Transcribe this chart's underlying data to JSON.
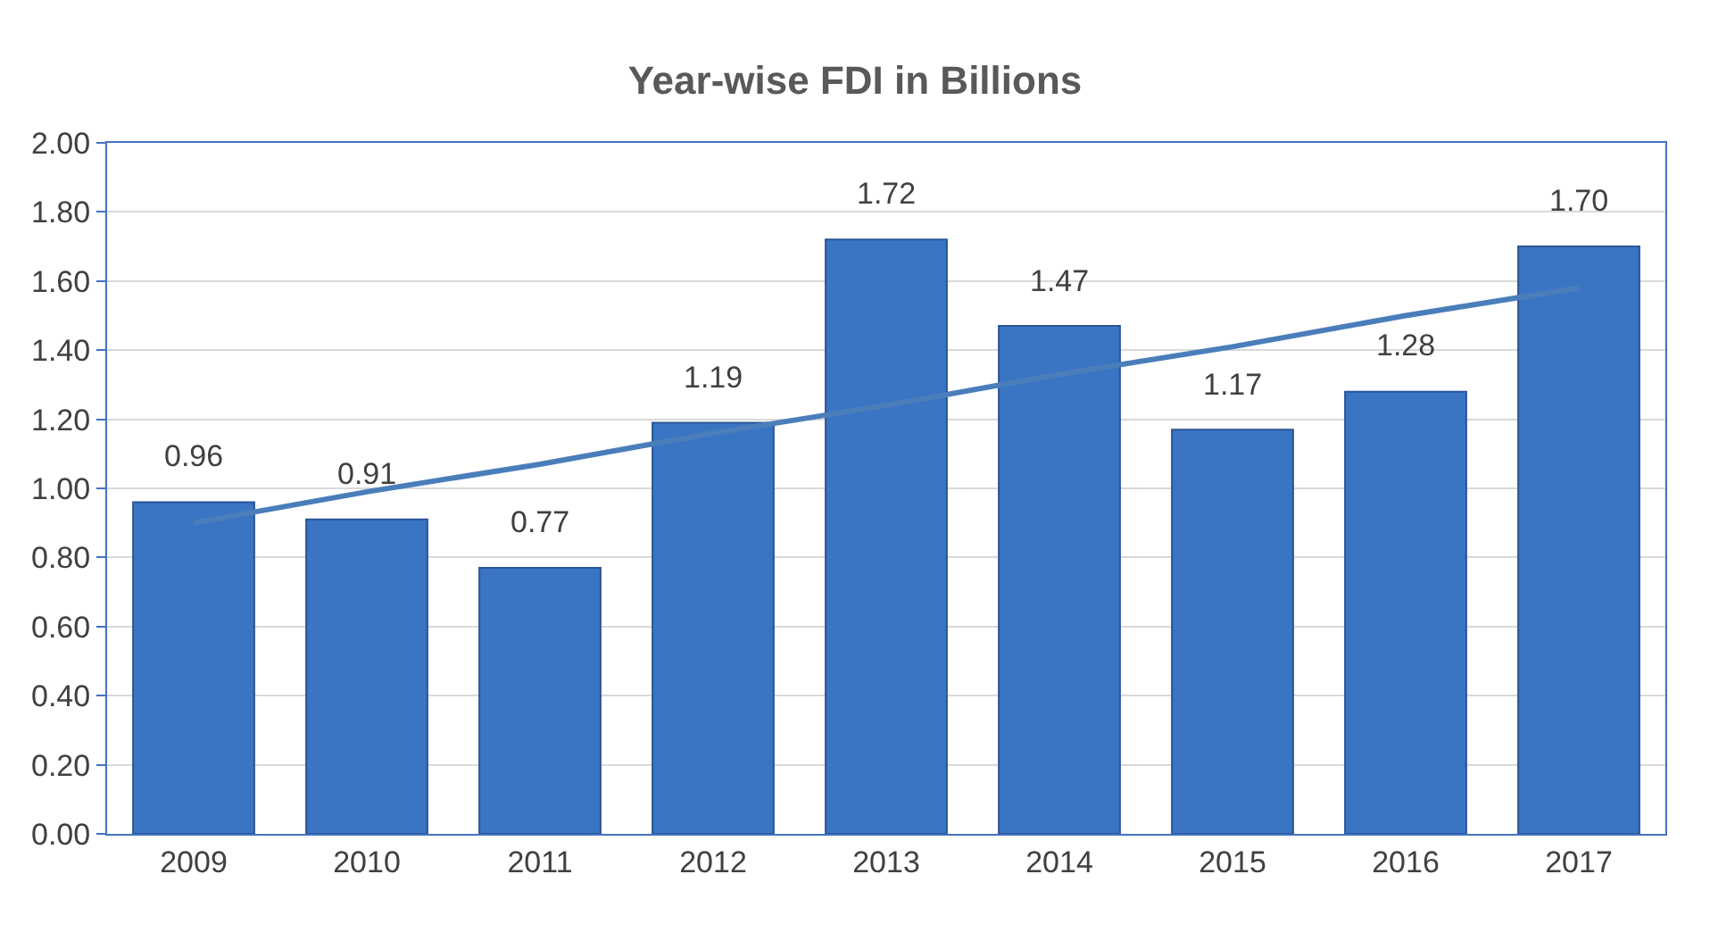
{
  "chart_data": {
    "type": "bar",
    "title": "Year-wise FDI in Billions",
    "categories": [
      "2009",
      "2010",
      "2011",
      "2012",
      "2013",
      "2014",
      "2015",
      "2016",
      "2017"
    ],
    "series": [
      {
        "color": "#3a75c4",
        "values": [
          0.96,
          0.91,
          0.77,
          1.19,
          1.72,
          1.47,
          1.17,
          1.28,
          1.7
        ],
        "value_labels": [
          "0.96",
          "0.91",
          "0.77",
          "1.19",
          "1.72",
          "1.47",
          "1.17",
          "1.28",
          "1.70"
        ]
      },
      {
        "type": "line",
        "color": "#4a7ebb",
        "values": [
          0.9,
          0.99,
          1.07,
          1.16,
          1.24,
          1.33,
          1.41,
          1.5,
          1.58
        ]
      }
    ],
    "ylim": [
      0,
      2
    ],
    "yticks": [
      {
        "value": 0,
        "label": "0.00"
      },
      {
        "value": 0.2,
        "label": "0.20"
      },
      {
        "value": 0.4,
        "label": "0.40"
      },
      {
        "value": 0.6,
        "label": "0.60"
      },
      {
        "value": 0.8,
        "label": "0.80"
      },
      {
        "value": 1.0,
        "label": "1.00"
      },
      {
        "value": 1.2,
        "label": "1.20"
      },
      {
        "value": 1.4,
        "label": "1.40"
      },
      {
        "value": 1.6,
        "label": "1.60"
      },
      {
        "value": 1.8,
        "label": "1.80"
      },
      {
        "value": 2.0,
        "label": "2.00"
      }
    ],
    "grid": "y"
  }
}
